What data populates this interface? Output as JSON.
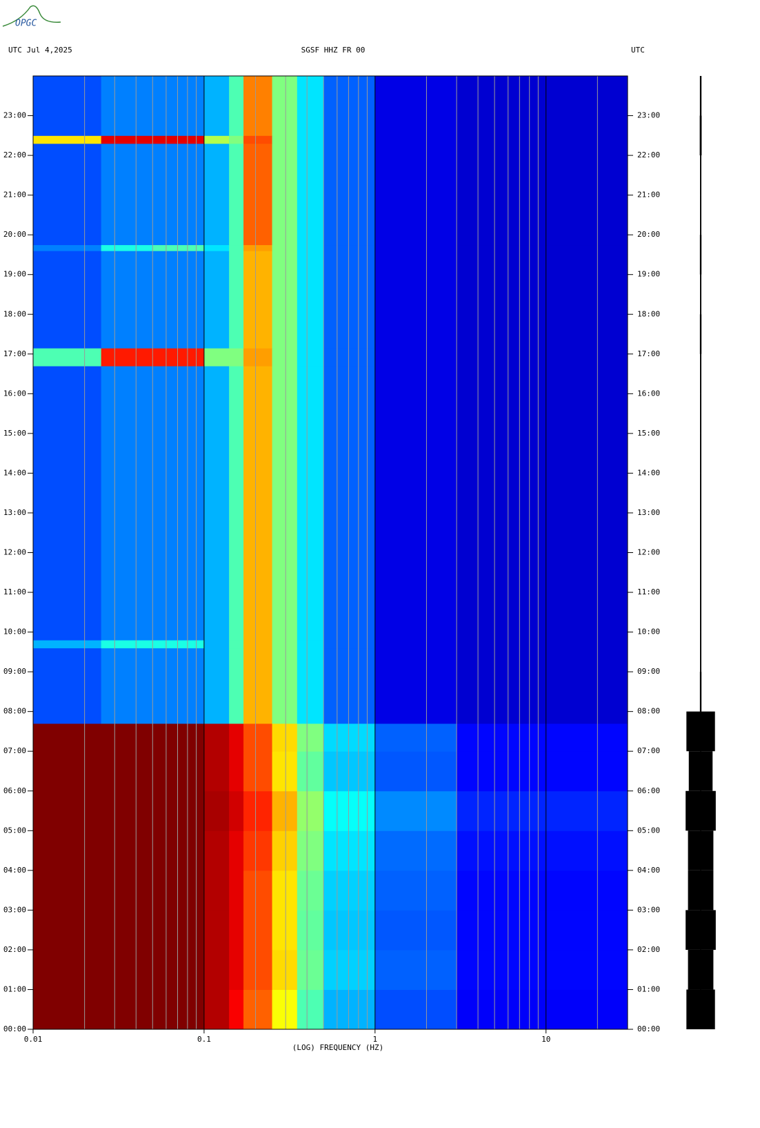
{
  "logo": "OPGC",
  "chart_data": {
    "type": "heatmap",
    "title_left": "UTC  Jul 4,2025",
    "title": "SGSF HHZ FR 00",
    "title_right": "UTC",
    "xlabel": "(LOG) FREQUENCY (HZ)",
    "xscale": "log",
    "xlim": [
      0.01,
      30
    ],
    "xticks": [
      {
        "value": 0.01,
        "label": "0.01"
      },
      {
        "value": 0.1,
        "label": "0.1"
      },
      1,
      10
    ],
    "xminor": [
      0.02,
      0.03,
      0.04,
      0.05,
      0.06,
      0.07,
      0.08,
      0.09,
      0.2,
      0.3,
      0.4,
      0.5,
      0.6,
      0.7,
      0.8,
      0.9,
      2,
      3,
      4,
      5,
      6,
      7,
      8,
      9,
      20
    ],
    "ylim": [
      0,
      24
    ],
    "yticks": [
      {
        "value": 0,
        "label": "00:00"
      },
      {
        "value": 1,
        "label": "01:00"
      },
      {
        "value": 2,
        "label": "02:00"
      },
      {
        "value": 3,
        "label": "03:00"
      },
      {
        "value": 4,
        "label": "04:00"
      },
      {
        "value": 5,
        "label": "05:00"
      },
      {
        "value": 6,
        "label": "06:00"
      },
      {
        "value": 7,
        "label": "07:00"
      },
      {
        "value": 8,
        "label": "08:00"
      },
      {
        "value": 9,
        "label": "09:00"
      },
      {
        "value": 10,
        "label": "10:00"
      },
      {
        "value": 11,
        "label": "11:00"
      },
      {
        "value": 12,
        "label": "12:00"
      },
      {
        "value": 13,
        "label": "13:00"
      },
      {
        "value": 14,
        "label": "14:00"
      },
      {
        "value": 15,
        "label": "15:00"
      },
      {
        "value": 16,
        "label": "16:00"
      },
      {
        "value": 17,
        "label": "17:00"
      },
      {
        "value": 18,
        "label": "18:00"
      },
      {
        "value": 19,
        "label": "19:00"
      },
      {
        "value": 20,
        "label": "20:00"
      },
      {
        "value": 21,
        "label": "21:00"
      },
      {
        "value": 22,
        "label": "22:00"
      },
      {
        "value": 23,
        "label": "23:00"
      }
    ],
    "colormap": "jet",
    "x_edges": [
      0.01,
      0.025,
      0.05,
      0.1,
      0.14,
      0.17,
      0.25,
      0.35,
      0.5,
      1,
      3,
      30
    ],
    "y_edges": [
      0,
      1,
      2,
      3,
      4,
      5,
      6,
      7,
      7.7,
      9.6,
      9.8,
      16.7,
      17.15,
      19.6,
      19.75,
      22.3,
      22.5,
      24
    ],
    "z": [
      [
        1,
        1,
        1,
        0.95,
        0.88,
        0.78,
        0.62,
        0.45,
        0.3,
        0.2,
        0.12
      ],
      [
        1,
        1,
        1,
        0.95,
        0.9,
        0.8,
        0.66,
        0.48,
        0.33,
        0.22,
        0.13
      ],
      [
        1,
        1,
        1,
        0.95,
        0.9,
        0.8,
        0.65,
        0.47,
        0.32,
        0.21,
        0.13
      ],
      [
        1,
        1,
        1,
        0.95,
        0.9,
        0.8,
        0.65,
        0.48,
        0.33,
        0.22,
        0.13
      ],
      [
        1,
        1,
        1,
        0.95,
        0.9,
        0.82,
        0.67,
        0.5,
        0.35,
        0.23,
        0.14
      ],
      [
        1,
        1,
        1,
        0.96,
        0.92,
        0.84,
        0.7,
        0.52,
        0.38,
        0.26,
        0.16
      ],
      [
        1,
        1,
        1,
        0.95,
        0.9,
        0.8,
        0.65,
        0.47,
        0.32,
        0.21,
        0.13
      ],
      [
        1,
        1,
        1,
        0.95,
        0.9,
        0.8,
        0.66,
        0.5,
        0.34,
        0.22,
        0.13
      ],
      [
        0.2,
        0.25,
        0.25,
        0.3,
        0.45,
        0.7,
        0.5,
        0.35,
        0.22,
        0.1,
        0.08
      ],
      [
        0.3,
        0.4,
        0.4,
        0.3,
        0.45,
        0.7,
        0.5,
        0.35,
        0.22,
        0.1,
        0.08
      ],
      [
        0.2,
        0.25,
        0.25,
        0.3,
        0.45,
        0.7,
        0.5,
        0.35,
        0.22,
        0.1,
        0.08
      ],
      [
        0.45,
        0.85,
        0.85,
        0.5,
        0.5,
        0.72,
        0.5,
        0.35,
        0.22,
        0.1,
        0.08
      ],
      [
        0.2,
        0.25,
        0.25,
        0.3,
        0.45,
        0.7,
        0.5,
        0.35,
        0.22,
        0.1,
        0.08
      ],
      [
        0.25,
        0.4,
        0.45,
        0.35,
        0.45,
        0.72,
        0.5,
        0.35,
        0.22,
        0.1,
        0.08
      ],
      [
        0.2,
        0.25,
        0.25,
        0.3,
        0.45,
        0.78,
        0.5,
        0.35,
        0.22,
        0.1,
        0.08
      ],
      [
        0.65,
        0.9,
        0.9,
        0.55,
        0.5,
        0.8,
        0.5,
        0.35,
        0.22,
        0.1,
        0.08
      ],
      [
        0.2,
        0.25,
        0.25,
        0.3,
        0.45,
        0.75,
        0.5,
        0.35,
        0.22,
        0.1,
        0.08
      ]
    ],
    "trace": {
      "values": [
        0.9,
        0.8,
        0.95,
        0.8,
        0.8,
        0.95,
        0.75,
        0.9,
        0.05,
        0.04,
        0.04,
        0.04,
        0.04,
        0.04,
        0.04,
        0.04,
        0.04,
        0.05,
        0.04,
        0.05,
        0.04,
        0.04,
        0.06,
        0.05
      ]
    }
  }
}
